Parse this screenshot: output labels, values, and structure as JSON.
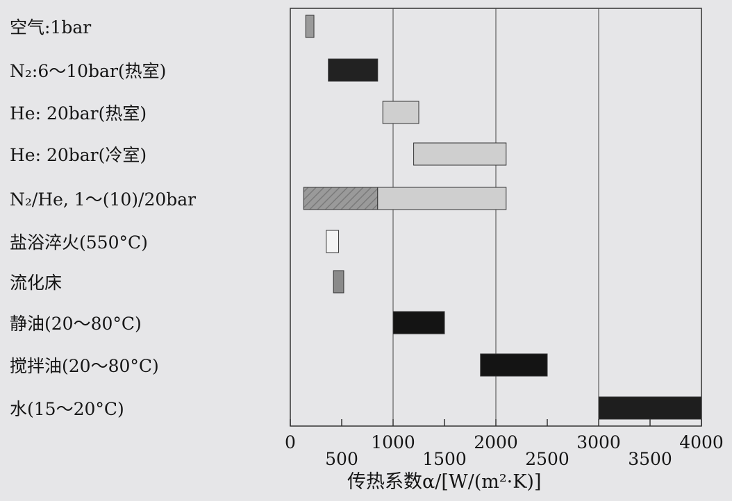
{
  "chart_data": {
    "type": "bar",
    "orientation": "horizontal-range",
    "categories": [
      "空气:1bar",
      "N₂:6～10bar(热室)",
      "He: 20bar(热室)",
      "He: 20bar(冷室)",
      "N₂/He, 1～(10)/20bar",
      "盐浴淬火(550°C)",
      "流化床",
      "静油(20～80°C)",
      "搅拌油(20～80°C)",
      "水(15～20°C)"
    ],
    "ranges": [
      {
        "segments": [
          {
            "from": 150,
            "to": 230,
            "color": "#9a9a9a"
          }
        ]
      },
      {
        "segments": [
          {
            "from": 370,
            "to": 850,
            "color": "#222222"
          }
        ]
      },
      {
        "segments": [
          {
            "from": 900,
            "to": 1250,
            "color": "#cfcfcf"
          }
        ]
      },
      {
        "segments": [
          {
            "from": 1200,
            "to": 2100,
            "color": "#cfcfcf"
          }
        ]
      },
      {
        "segments": [
          {
            "from": 130,
            "to": 850,
            "color": "#9a9a9a",
            "hatched": true
          },
          {
            "from": 850,
            "to": 2100,
            "color": "#cfcfcf"
          }
        ]
      },
      {
        "segments": [
          {
            "from": 350,
            "to": 470,
            "color": "#f4f4f4"
          }
        ]
      },
      {
        "segments": [
          {
            "from": 420,
            "to": 520,
            "color": "#8a8a8a"
          }
        ]
      },
      {
        "segments": [
          {
            "from": 1000,
            "to": 1500,
            "color": "#141414"
          }
        ]
      },
      {
        "segments": [
          {
            "from": 1850,
            "to": 2500,
            "color": "#141414"
          }
        ]
      },
      {
        "segments": [
          {
            "from": 3000,
            "to": 4000,
            "color": "#1e1e1e"
          }
        ]
      }
    ],
    "xlabel": "传热系数α/[W/(m²·K)]",
    "xlim": [
      0,
      4000
    ],
    "xticks": [
      0,
      500,
      1000,
      1500,
      2000,
      2500,
      3000,
      3500,
      4000
    ],
    "xtick_labels": [
      "0",
      "500",
      "1000",
      "1500",
      "2000",
      "2500",
      "3000",
      "3500",
      "4000"
    ],
    "grid": "vertical at 1000, 2000, 3000"
  }
}
